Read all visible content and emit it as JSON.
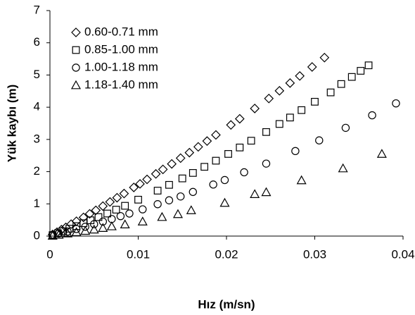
{
  "chart_data": {
    "type": "scatter",
    "x_label": "Hız (m/sn)",
    "y_label": "Yük kaybı (m)",
    "xlim": [
      0,
      0.04
    ],
    "xticks": [
      0,
      0.01,
      0.02,
      0.03,
      0.04
    ],
    "ylim": [
      0,
      7
    ],
    "yticks": [
      0,
      1,
      2,
      3,
      4,
      5,
      6,
      7
    ],
    "grid": false,
    "legend": "upper-left",
    "series": [
      {
        "name": "0.60-0.71 mm",
        "marker": "diamond",
        "color": "#000000",
        "x": [
          0.0003,
          0.0008,
          0.0013,
          0.0018,
          0.0024,
          0.003,
          0.0038,
          0.0045,
          0.0052,
          0.006,
          0.0068,
          0.0076,
          0.0084,
          0.0095,
          0.0102,
          0.011,
          0.012,
          0.0128,
          0.0138,
          0.0148,
          0.0158,
          0.0168,
          0.0178,
          0.0188,
          0.0205,
          0.0215,
          0.0232,
          0.0248,
          0.026,
          0.0272,
          0.0283,
          0.0297,
          0.0311
        ],
        "y": [
          0.05,
          0.12,
          0.2,
          0.27,
          0.37,
          0.46,
          0.58,
          0.69,
          0.8,
          0.93,
          1.06,
          1.19,
          1.32,
          1.51,
          1.62,
          1.76,
          1.93,
          2.07,
          2.24,
          2.42,
          2.59,
          2.77,
          2.95,
          3.14,
          3.45,
          3.64,
          3.96,
          4.27,
          4.51,
          4.75,
          4.97,
          5.25,
          5.54
        ]
      },
      {
        "name": "0.85-1.00 mm",
        "marker": "square",
        "color": "#000000",
        "x": [
          0.0003,
          0.0009,
          0.0015,
          0.0022,
          0.003,
          0.0038,
          0.0046,
          0.0055,
          0.0065,
          0.0075,
          0.0085,
          0.01,
          0.0122,
          0.0135,
          0.015,
          0.0162,
          0.0175,
          0.0188,
          0.0202,
          0.0215,
          0.0228,
          0.0245,
          0.026,
          0.0272,
          0.0285,
          0.03,
          0.0318,
          0.033,
          0.0342,
          0.0352,
          0.0361
        ],
        "y": [
          0.03,
          0.09,
          0.15,
          0.23,
          0.31,
          0.4,
          0.49,
          0.59,
          0.7,
          0.82,
          0.94,
          1.13,
          1.41,
          1.59,
          1.79,
          1.96,
          2.15,
          2.34,
          2.55,
          2.75,
          2.96,
          3.23,
          3.48,
          3.68,
          3.91,
          4.17,
          4.46,
          4.72,
          4.94,
          5.13,
          5.3
        ]
      },
      {
        "name": "1.00-1.18 mm",
        "marker": "circle",
        "color": "#000000",
        "x": [
          0.0003,
          0.001,
          0.002,
          0.003,
          0.004,
          0.005,
          0.006,
          0.007,
          0.008,
          0.009,
          0.0105,
          0.0122,
          0.0135,
          0.0148,
          0.0162,
          0.0185,
          0.0198,
          0.022,
          0.0245,
          0.0278,
          0.0305,
          0.0335,
          0.0365,
          0.0392
        ],
        "y": [
          0.02,
          0.08,
          0.14,
          0.22,
          0.29,
          0.37,
          0.45,
          0.53,
          0.62,
          0.7,
          0.83,
          0.99,
          1.11,
          1.23,
          1.37,
          1.6,
          1.74,
          1.98,
          2.25,
          2.64,
          2.97,
          3.36,
          3.75,
          4.12
        ]
      },
      {
        "name": "1.18-1.40 mm",
        "marker": "triangle",
        "color": "#000000",
        "x": [
          0.0003,
          0.001,
          0.002,
          0.003,
          0.004,
          0.005,
          0.006,
          0.007,
          0.0085,
          0.0105,
          0.0127,
          0.0145,
          0.016,
          0.0198,
          0.0232,
          0.0245,
          0.0285,
          0.0332,
          0.0376
        ],
        "y": [
          0.01,
          0.04,
          0.08,
          0.12,
          0.16,
          0.2,
          0.25,
          0.3,
          0.36,
          0.45,
          0.59,
          0.68,
          0.8,
          1.03,
          1.3,
          1.36,
          1.73,
          2.1,
          2.55
        ]
      }
    ]
  }
}
